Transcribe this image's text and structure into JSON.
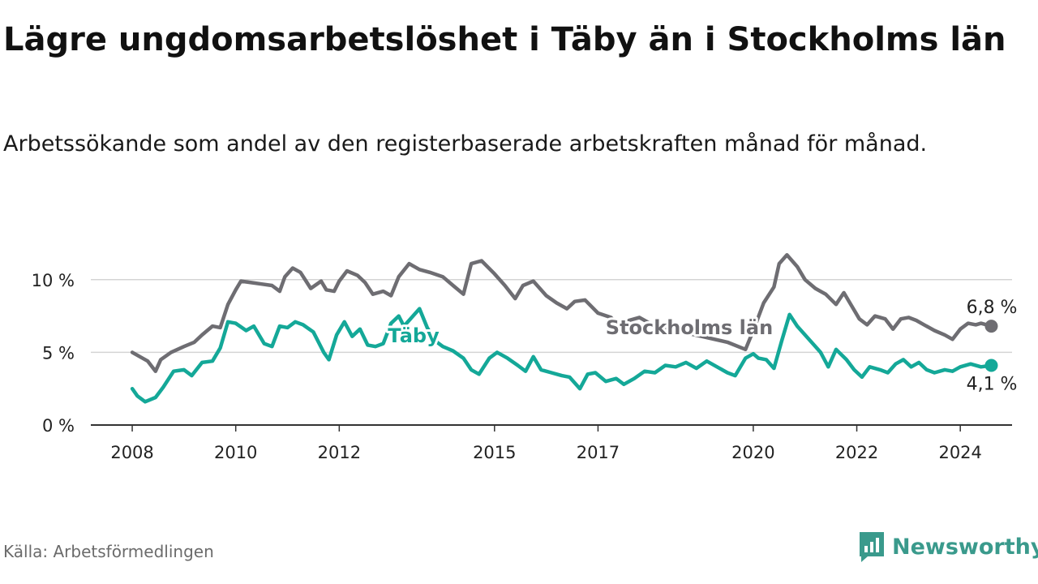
{
  "title": "Lägre ungdomsarbetslöshet i Täby än i Stockholms län",
  "subtitle": "Arbetssökande som andel av den registerbaserade arbetskraften månad för månad.",
  "source": "Källa: Arbetsförmedlingen",
  "brand": "Newsworthy",
  "colors": {
    "stockholm": "#6e6d72",
    "taby": "#14a898",
    "grid": "#d4d4d4",
    "axis": "#333333",
    "brand": "#3a9a8c"
  },
  "chart_data": {
    "type": "line",
    "x_unit": "year (decimal)",
    "xlim": [
      2007.2,
      2025.0
    ],
    "ylim": [
      0,
      12.5
    ],
    "x_ticks": [
      {
        "value": 2008,
        "label": "2008"
      },
      {
        "value": 2010,
        "label": "2010"
      },
      {
        "value": 2012,
        "label": "2012"
      },
      {
        "value": 2015,
        "label": "2015"
      },
      {
        "value": 2017,
        "label": "2017"
      },
      {
        "value": 2020,
        "label": "2020"
      },
      {
        "value": 2022,
        "label": "2022"
      },
      {
        "value": 2024,
        "label": "2024"
      }
    ],
    "y_ticks": [
      {
        "value": 0,
        "label": "0 %"
      },
      {
        "value": 5,
        "label": "5 %"
      },
      {
        "value": 10,
        "label": "10 %"
      }
    ],
    "series": [
      {
        "name": "Stockholms län",
        "end_label": "6,8 %",
        "end_value": 6.8,
        "points": [
          [
            2008.0,
            5.0
          ],
          [
            2008.15,
            4.7
          ],
          [
            2008.3,
            4.4
          ],
          [
            2008.45,
            3.7
          ],
          [
            2008.55,
            4.5
          ],
          [
            2008.75,
            5.0
          ],
          [
            2009.0,
            5.4
          ],
          [
            2009.2,
            5.7
          ],
          [
            2009.35,
            6.2
          ],
          [
            2009.55,
            6.8
          ],
          [
            2009.7,
            6.7
          ],
          [
            2009.85,
            8.3
          ],
          [
            2010.0,
            9.3
          ],
          [
            2010.1,
            9.9
          ],
          [
            2010.3,
            9.8
          ],
          [
            2010.5,
            9.7
          ],
          [
            2010.7,
            9.6
          ],
          [
            2010.85,
            9.2
          ],
          [
            2010.95,
            10.2
          ],
          [
            2011.1,
            10.8
          ],
          [
            2011.25,
            10.5
          ],
          [
            2011.45,
            9.4
          ],
          [
            2011.65,
            9.9
          ],
          [
            2011.75,
            9.3
          ],
          [
            2011.9,
            9.2
          ],
          [
            2012.0,
            9.9
          ],
          [
            2012.15,
            10.6
          ],
          [
            2012.35,
            10.3
          ],
          [
            2012.5,
            9.8
          ],
          [
            2012.65,
            9.0
          ],
          [
            2012.85,
            9.2
          ],
          [
            2013.0,
            8.9
          ],
          [
            2013.15,
            10.2
          ],
          [
            2013.35,
            11.1
          ],
          [
            2013.55,
            10.7
          ],
          [
            2013.75,
            10.5
          ],
          [
            2014.0,
            10.2
          ],
          [
            2014.2,
            9.6
          ],
          [
            2014.4,
            9.0
          ],
          [
            2014.55,
            11.1
          ],
          [
            2014.75,
            11.3
          ],
          [
            2015.0,
            10.4
          ],
          [
            2015.2,
            9.6
          ],
          [
            2015.4,
            8.7
          ],
          [
            2015.55,
            9.6
          ],
          [
            2015.75,
            9.9
          ],
          [
            2016.0,
            8.9
          ],
          [
            2016.2,
            8.4
          ],
          [
            2016.4,
            8.0
          ],
          [
            2016.55,
            8.5
          ],
          [
            2016.75,
            8.6
          ],
          [
            2017.0,
            7.7
          ],
          [
            2017.25,
            7.4
          ],
          [
            2017.45,
            6.6
          ],
          [
            2017.6,
            7.2
          ],
          [
            2017.8,
            7.4
          ],
          [
            2018.0,
            7.0
          ],
          [
            2018.5,
            6.5
          ],
          [
            2019.0,
            6.1
          ],
          [
            2019.5,
            5.7
          ],
          [
            2019.85,
            5.2
          ],
          [
            2020.0,
            6.5
          ],
          [
            2020.2,
            8.4
          ],
          [
            2020.4,
            9.5
          ],
          [
            2020.5,
            11.1
          ],
          [
            2020.65,
            11.7
          ],
          [
            2020.85,
            10.9
          ],
          [
            2021.0,
            10.0
          ],
          [
            2021.2,
            9.4
          ],
          [
            2021.4,
            9.0
          ],
          [
            2021.6,
            8.3
          ],
          [
            2021.75,
            9.1
          ],
          [
            2021.9,
            8.2
          ],
          [
            2022.05,
            7.3
          ],
          [
            2022.2,
            6.9
          ],
          [
            2022.35,
            7.5
          ],
          [
            2022.55,
            7.3
          ],
          [
            2022.7,
            6.6
          ],
          [
            2022.85,
            7.3
          ],
          [
            2023.0,
            7.4
          ],
          [
            2023.15,
            7.2
          ],
          [
            2023.3,
            6.9
          ],
          [
            2023.5,
            6.5
          ],
          [
            2023.7,
            6.2
          ],
          [
            2023.85,
            5.9
          ],
          [
            2024.0,
            6.6
          ],
          [
            2024.15,
            7.0
          ],
          [
            2024.3,
            6.9
          ],
          [
            2024.4,
            7.0
          ],
          [
            2024.6,
            6.8
          ]
        ]
      },
      {
        "name": "Täby",
        "end_label": "4,1 %",
        "end_value": 4.1,
        "points": [
          [
            2008.0,
            2.5
          ],
          [
            2008.1,
            2.0
          ],
          [
            2008.25,
            1.6
          ],
          [
            2008.45,
            1.9
          ],
          [
            2008.6,
            2.6
          ],
          [
            2008.8,
            3.7
          ],
          [
            2009.0,
            3.8
          ],
          [
            2009.15,
            3.4
          ],
          [
            2009.35,
            4.3
          ],
          [
            2009.55,
            4.4
          ],
          [
            2009.7,
            5.3
          ],
          [
            2009.85,
            7.1
          ],
          [
            2010.0,
            7.0
          ],
          [
            2010.2,
            6.5
          ],
          [
            2010.35,
            6.8
          ],
          [
            2010.55,
            5.6
          ],
          [
            2010.7,
            5.4
          ],
          [
            2010.85,
            6.8
          ],
          [
            2011.0,
            6.7
          ],
          [
            2011.15,
            7.1
          ],
          [
            2011.3,
            6.9
          ],
          [
            2011.5,
            6.4
          ],
          [
            2011.7,
            5.0
          ],
          [
            2011.8,
            4.5
          ],
          [
            2011.95,
            6.2
          ],
          [
            2012.1,
            7.1
          ],
          [
            2012.25,
            6.1
          ],
          [
            2012.4,
            6.6
          ],
          [
            2012.55,
            5.5
          ],
          [
            2012.7,
            5.4
          ],
          [
            2012.85,
            5.6
          ],
          [
            2013.0,
            7.0
          ],
          [
            2013.15,
            7.5
          ],
          [
            2013.25,
            6.8
          ],
          [
            2013.4,
            7.4
          ],
          [
            2013.55,
            8.0
          ],
          [
            2013.7,
            6.7
          ],
          [
            2013.85,
            5.8
          ],
          [
            2014.0,
            5.4
          ],
          [
            2014.2,
            5.1
          ],
          [
            2014.4,
            4.6
          ],
          [
            2014.55,
            3.8
          ],
          [
            2014.7,
            3.5
          ],
          [
            2014.9,
            4.6
          ],
          [
            2015.05,
            5.0
          ],
          [
            2015.25,
            4.6
          ],
          [
            2015.45,
            4.1
          ],
          [
            2015.6,
            3.7
          ],
          [
            2015.75,
            4.7
          ],
          [
            2015.9,
            3.8
          ],
          [
            2016.1,
            3.6
          ],
          [
            2016.3,
            3.4
          ],
          [
            2016.45,
            3.3
          ],
          [
            2016.65,
            2.5
          ],
          [
            2016.8,
            3.5
          ],
          [
            2016.95,
            3.6
          ],
          [
            2017.15,
            3.0
          ],
          [
            2017.35,
            3.2
          ],
          [
            2017.5,
            2.8
          ],
          [
            2017.7,
            3.2
          ],
          [
            2017.9,
            3.7
          ],
          [
            2018.1,
            3.6
          ],
          [
            2018.3,
            4.1
          ],
          [
            2018.5,
            4.0
          ],
          [
            2018.7,
            4.3
          ],
          [
            2018.9,
            3.9
          ],
          [
            2019.1,
            4.4
          ],
          [
            2019.3,
            4.0
          ],
          [
            2019.5,
            3.6
          ],
          [
            2019.65,
            3.4
          ],
          [
            2019.85,
            4.6
          ],
          [
            2020.0,
            4.9
          ],
          [
            2020.1,
            4.6
          ],
          [
            2020.25,
            4.5
          ],
          [
            2020.4,
            3.9
          ],
          [
            2020.55,
            5.8
          ],
          [
            2020.7,
            7.6
          ],
          [
            2020.85,
            6.8
          ],
          [
            2021.0,
            6.2
          ],
          [
            2021.15,
            5.6
          ],
          [
            2021.3,
            5.0
          ],
          [
            2021.45,
            4.0
          ],
          [
            2021.6,
            5.2
          ],
          [
            2021.8,
            4.5
          ],
          [
            2021.95,
            3.8
          ],
          [
            2022.1,
            3.3
          ],
          [
            2022.25,
            4.0
          ],
          [
            2022.45,
            3.8
          ],
          [
            2022.6,
            3.6
          ],
          [
            2022.75,
            4.2
          ],
          [
            2022.9,
            4.5
          ],
          [
            2023.05,
            4.0
          ],
          [
            2023.2,
            4.3
          ],
          [
            2023.35,
            3.8
          ],
          [
            2023.5,
            3.6
          ],
          [
            2023.7,
            3.8
          ],
          [
            2023.85,
            3.7
          ],
          [
            2024.0,
            4.0
          ],
          [
            2024.2,
            4.2
          ],
          [
            2024.4,
            4.0
          ],
          [
            2024.6,
            4.1
          ]
        ]
      }
    ]
  }
}
